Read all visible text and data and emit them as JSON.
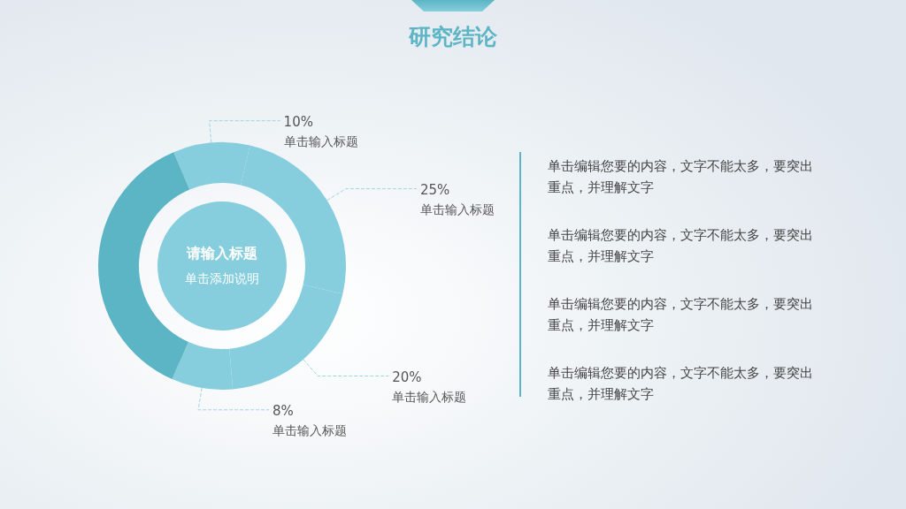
{
  "chart_data": {
    "type": "donut",
    "title": "研究结论",
    "categories": [
      "单击输入标题",
      "单击输入标题",
      "单击输入标题",
      "单击输入标题",
      null
    ],
    "values": [
      10,
      25,
      20,
      8,
      37
    ],
    "colors": [
      "#86cedd",
      "#86cedd",
      "#86cedd",
      "#86cedd",
      "#5bb5c5"
    ],
    "value_labels": [
      "10%",
      "25%",
      "20%",
      "8%",
      null
    ],
    "annotations": [
      "请输入标题",
      "单击添加说明",
      "单击编辑您要的内容，文字不能太多，要突出重点，并理解文字",
      "单击编辑您要的内容，文字不能太多，要突出重点，并理解文字",
      "单击编辑您要的内容，文字不能太多，要突出重点，并理解文字",
      "单击编辑您要的内容，文字不能太多，要突出重点，并理解文字"
    ]
  }
}
